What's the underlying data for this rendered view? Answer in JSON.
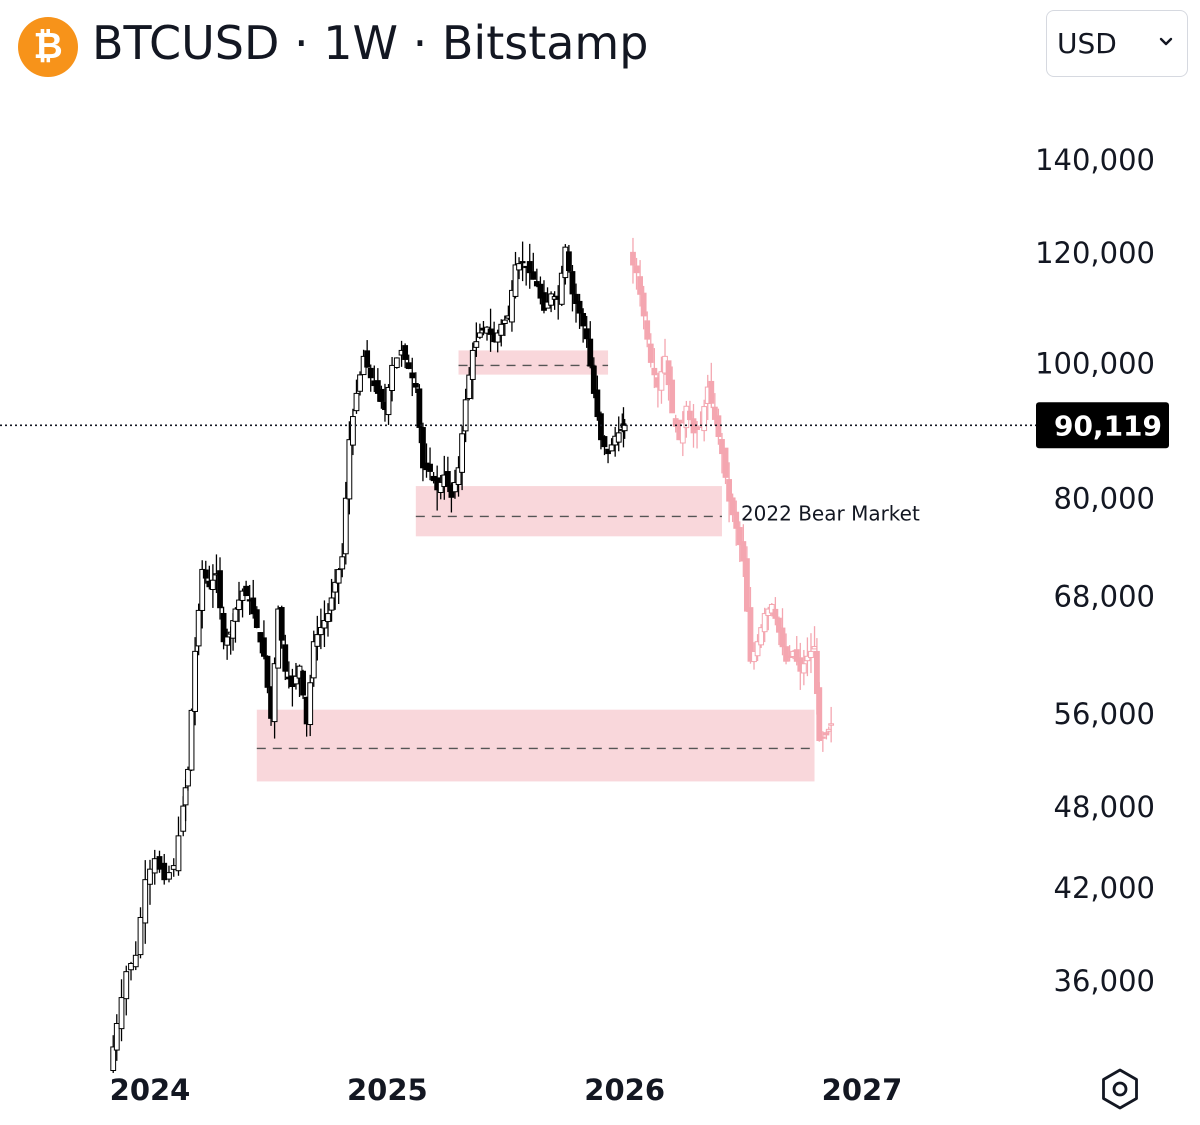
{
  "header": {
    "logo_glyph": "₿",
    "title": "BTCUSD · 1W · Bitstamp",
    "currency": "USD"
  },
  "chart_data": {
    "type": "candlestick",
    "symbol": "BTCUSD",
    "interval": "1W",
    "exchange": "Bitstamp",
    "currency": "USD",
    "scale": "logarithmic",
    "ylim": [
      31000,
      150000
    ],
    "xlim": [
      2023.8,
      2027.2
    ],
    "y_ticks": [
      140000,
      120000,
      100000,
      80000,
      68000,
      56000,
      48000,
      42000,
      36000
    ],
    "y_tick_labels": [
      "140,000",
      "120,000",
      "100,000",
      "80,000",
      "68,000",
      "56,000",
      "48,000",
      "42,000",
      "36,000"
    ],
    "x_ticks": [
      2024,
      2025,
      2026,
      2027
    ],
    "x_tick_labels": [
      "2024",
      "2025",
      "2026",
      "2027"
    ],
    "last_price": 90119,
    "last_price_label": "90,119",
    "colors": {
      "candles": "#000000",
      "projection": "#f4a6b0",
      "zone_fill": "#f7c9cf",
      "dashed_level": "#555555",
      "price_tag_bg": "#000000",
      "accent_logo": "#F7931A"
    },
    "price_path": [
      [
        2023.83,
        31000
      ],
      [
        2023.86,
        33500
      ],
      [
        2023.9,
        36500
      ],
      [
        2023.94,
        37500
      ],
      [
        2023.98,
        42500
      ],
      [
        2024.02,
        44000
      ],
      [
        2024.06,
        42500
      ],
      [
        2024.1,
        43500
      ],
      [
        2024.14,
        48000
      ],
      [
        2024.16,
        51000
      ],
      [
        2024.19,
        62000
      ],
      [
        2024.22,
        71000
      ],
      [
        2024.25,
        69000
      ],
      [
        2024.28,
        70500
      ],
      [
        2024.31,
        63000
      ],
      [
        2024.34,
        64000
      ],
      [
        2024.36,
        66500
      ],
      [
        2024.39,
        68500
      ],
      [
        2024.42,
        67500
      ],
      [
        2024.45,
        64500
      ],
      [
        2024.48,
        61500
      ],
      [
        2024.51,
        55500
      ],
      [
        2024.54,
        66500
      ],
      [
        2024.57,
        60000
      ],
      [
        2024.6,
        58500
      ],
      [
        2024.63,
        60500
      ],
      [
        2024.66,
        55000
      ],
      [
        2024.69,
        63000
      ],
      [
        2024.72,
        64500
      ],
      [
        2024.75,
        66000
      ],
      [
        2024.78,
        69500
      ],
      [
        2024.81,
        72500
      ],
      [
        2024.84,
        88000
      ],
      [
        2024.87,
        95000
      ],
      [
        2024.9,
        101000
      ],
      [
        2024.93,
        97500
      ],
      [
        2024.96,
        95000
      ],
      [
        2024.99,
        92500
      ],
      [
        2025.02,
        99500
      ],
      [
        2025.06,
        102000
      ],
      [
        2025.09,
        99000
      ],
      [
        2025.12,
        96000
      ],
      [
        2025.15,
        84000
      ],
      [
        2025.18,
        83500
      ],
      [
        2025.21,
        81000
      ],
      [
        2025.24,
        83000
      ],
      [
        2025.27,
        80000
      ],
      [
        2025.3,
        84000
      ],
      [
        2025.33,
        94000
      ],
      [
        2025.36,
        102000
      ],
      [
        2025.39,
        105000
      ],
      [
        2025.42,
        106000
      ],
      [
        2025.45,
        103500
      ],
      [
        2025.48,
        106500
      ],
      [
        2025.51,
        108000
      ],
      [
        2025.54,
        117500
      ],
      [
        2025.57,
        118000
      ],
      [
        2025.6,
        116000
      ],
      [
        2025.63,
        113500
      ],
      [
        2025.66,
        109000
      ],
      [
        2025.69,
        112000
      ],
      [
        2025.72,
        111000
      ],
      [
        2025.75,
        121000
      ],
      [
        2025.78,
        112000
      ],
      [
        2025.81,
        108500
      ],
      [
        2025.84,
        104000
      ],
      [
        2025.87,
        95000
      ],
      [
        2025.9,
        88000
      ],
      [
        2025.93,
        86000
      ],
      [
        2025.96,
        88500
      ],
      [
        2025.99,
        89500
      ],
      [
        2026.0,
        90119
      ]
    ],
    "projection_path": [
      [
        2026.02,
        119000
      ],
      [
        2026.05,
        116000
      ],
      [
        2026.08,
        108000
      ],
      [
        2026.11,
        100000
      ],
      [
        2026.14,
        96000
      ],
      [
        2026.17,
        101000
      ],
      [
        2026.2,
        92000
      ],
      [
        2026.23,
        88000
      ],
      [
        2026.26,
        93000
      ],
      [
        2026.29,
        89000
      ],
      [
        2026.32,
        90000
      ],
      [
        2026.35,
        96000
      ],
      [
        2026.38,
        91000
      ],
      [
        2026.41,
        86000
      ],
      [
        2026.44,
        79500
      ],
      [
        2026.47,
        76000
      ],
      [
        2026.5,
        72000
      ],
      [
        2026.53,
        61000
      ],
      [
        2026.56,
        63000
      ],
      [
        2026.59,
        66000
      ],
      [
        2026.62,
        67000
      ],
      [
        2026.65,
        64000
      ],
      [
        2026.68,
        61000
      ],
      [
        2026.71,
        62000
      ],
      [
        2026.74,
        60000
      ],
      [
        2026.77,
        61500
      ],
      [
        2026.8,
        62500
      ],
      [
        2026.82,
        53500
      ],
      [
        2026.85,
        54000
      ],
      [
        2026.87,
        55000
      ]
    ],
    "zones": [
      {
        "name": "resistance-zone",
        "x0": 2025.3,
        "x1": 2025.93,
        "y0": 98000,
        "y1": 102000,
        "level": 99500
      },
      {
        "name": "mid-support-zone",
        "x0": 2025.12,
        "x1": 2026.41,
        "y0": 75000,
        "y1": 81500,
        "level": 77500
      },
      {
        "name": "low-support-zone",
        "x0": 2024.45,
        "x1": 2026.8,
        "y0": 50000,
        "y1": 56300,
        "level": 52800
      }
    ],
    "annotations": [
      {
        "text": "2022 Bear Market",
        "x": 2026.49,
        "y": 77000
      }
    ]
  }
}
